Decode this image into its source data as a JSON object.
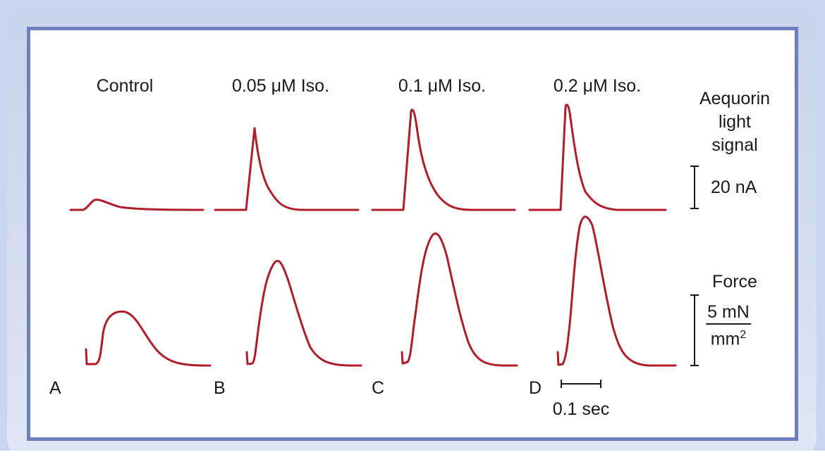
{
  "conditions": [
    "Control",
    "0.05 μM Iso.",
    "0.1 μM Iso.",
    "0.2 μM Iso."
  ],
  "panel_letters": [
    "A",
    "B",
    "C",
    "D"
  ],
  "signal_label": [
    "Aequorin",
    "light",
    "signal"
  ],
  "signal_scale": "20 nA",
  "force_label": "Force",
  "force_scale_num": "5 mN",
  "force_scale_den": "mm",
  "force_scale_exp": "2",
  "time_scale": "0.1 sec",
  "colors": {
    "trace": "#b01c2a",
    "frame": "#6f7fbd",
    "background": "#c9d5ee"
  }
}
